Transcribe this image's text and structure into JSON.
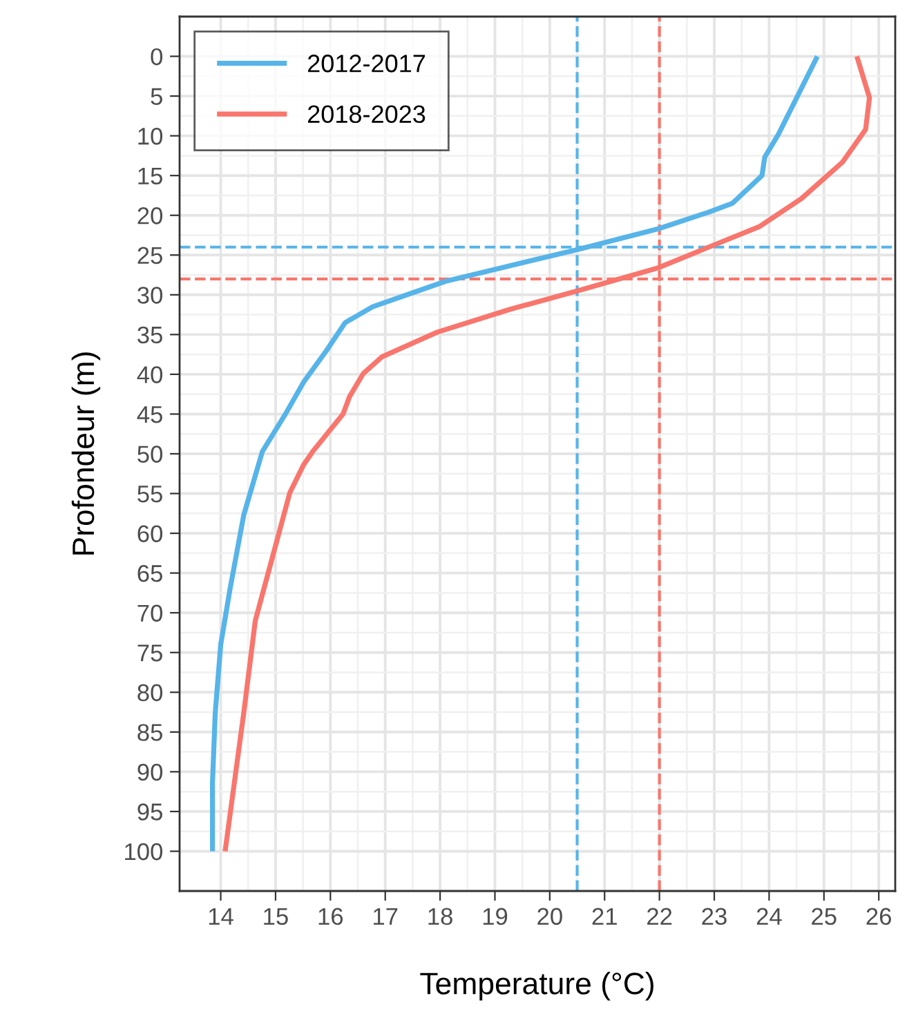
{
  "chart_data": {
    "type": "line",
    "xlabel": "Temperature (°C)",
    "ylabel": "Profondeur (m)",
    "xlim": [
      13.25,
      26.3
    ],
    "ylim": [
      105,
      -5
    ],
    "xticks": [
      14,
      15,
      16,
      17,
      18,
      19,
      20,
      21,
      22,
      23,
      24,
      25,
      26
    ],
    "yticks": [
      0,
      5,
      10,
      15,
      20,
      25,
      30,
      35,
      40,
      45,
      50,
      55,
      60,
      65,
      70,
      75,
      80,
      85,
      90,
      95,
      100
    ],
    "grid": true,
    "legend": "top left",
    "line_style": "solid",
    "marker": "none",
    "series": [
      {
        "name": "2012-2017",
        "color": "#56b4e9",
        "x": [
          24.88,
          24.17,
          23.92,
          23.87,
          23.33,
          22.9,
          21.98,
          20.51,
          19.12,
          18.1,
          16.77,
          16.27,
          15.93,
          15.51,
          15.18,
          14.76,
          14.42,
          14.17,
          14.0,
          13.9,
          13.85,
          13.85
        ],
        "values": [
          0,
          9.8,
          12.7,
          15.0,
          18.5,
          19.6,
          21.7,
          24.3,
          26.6,
          28.3,
          31.5,
          33.5,
          37,
          41,
          45,
          49.7,
          57.7,
          67,
          74,
          82.6,
          91.3,
          100
        ]
      },
      {
        "name": "2018-2023",
        "color": "#f8766d",
        "x": [
          25.6,
          25.83,
          25.76,
          25.34,
          24.59,
          23.83,
          22.9,
          21.98,
          20.51,
          19.29,
          17.95,
          16.94,
          16.6,
          16.35,
          16.23,
          15.68,
          15.51,
          15.26,
          14.92,
          14.63,
          14.42,
          14.25,
          14.08
        ],
        "values": [
          0,
          5.2,
          9.2,
          13.3,
          17.9,
          21.4,
          24,
          26.6,
          29.5,
          31.8,
          34.7,
          37.8,
          39.9,
          42.8,
          45,
          49.7,
          51.4,
          54.9,
          63.6,
          71,
          82.6,
          91.3,
          100
        ]
      }
    ],
    "ref_lines": [
      {
        "axis": "x",
        "value": 20.5,
        "color": "#56b4e9",
        "line_style": "dashed"
      },
      {
        "axis": "x",
        "value": 22,
        "color": "#f8766d",
        "line_style": "dashed"
      },
      {
        "axis": "y",
        "value": 24,
        "color": "#56b4e9",
        "line_style": "dashed"
      },
      {
        "axis": "y",
        "value": 28,
        "color": "#f8766d",
        "line_style": "dashed"
      }
    ]
  }
}
